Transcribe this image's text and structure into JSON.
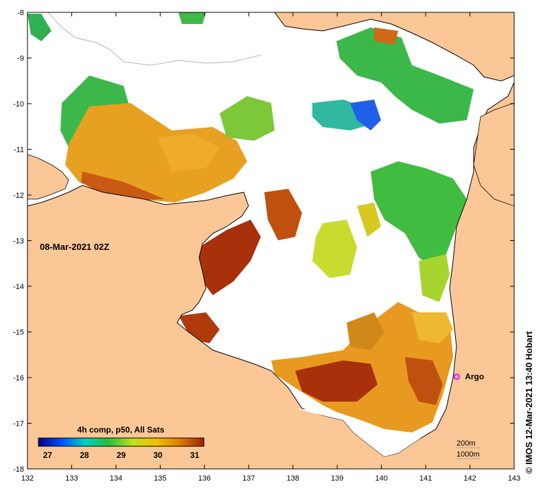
{
  "map": {
    "timestamp": "08-Mar-2021 02Z",
    "credit": "© IMOS 12-Mar-2021 13:40 Hobart",
    "lon_range": [
      132,
      143
    ],
    "lat_range": [
      -18,
      -8
    ],
    "lon_ticks": [
      "132",
      "133",
      "134",
      "135",
      "136",
      "137",
      "138",
      "139",
      "140",
      "141",
      "142",
      "143"
    ],
    "lat_ticks": [
      "-8",
      "-9",
      "-10",
      "-11",
      "-12",
      "-13",
      "-14",
      "-15",
      "-16",
      "-17",
      "-18"
    ],
    "colors": {
      "land": "#fbc796",
      "ocean_nodata": "#ffffff",
      "coast": "#000000"
    },
    "legend": {
      "title": "4h comp, p50, All Sats",
      "ticks": [
        "27",
        "28",
        "29",
        "30",
        "31"
      ],
      "range": [
        26.75,
        31.25
      ],
      "colors": [
        "#000080",
        "#0050ff",
        "#00d0c0",
        "#20c040",
        "#c0e020",
        "#f0c000",
        "#e08000",
        "#a02000"
      ]
    },
    "argo": {
      "label": "Argo",
      "lon": 141.7,
      "lat": -15.98,
      "color": "#ff00ff"
    },
    "depth_contours": [
      "200m",
      "1000m"
    ]
  }
}
